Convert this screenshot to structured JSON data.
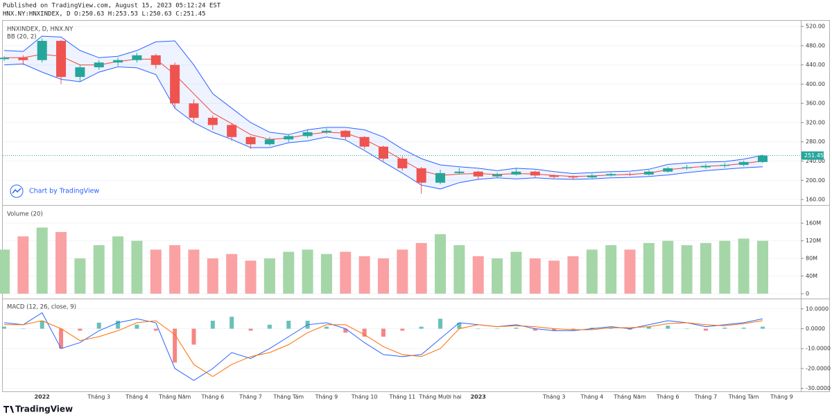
{
  "header": {
    "published": "Published on TradingView.com, August 15, 2023 05:12:24 EST",
    "quote": "HNX.NY:HNXINDEX, D O:250.63 H:253.53 L:250.63 C:251.45"
  },
  "footer": {
    "brand": "TradingView"
  },
  "chart_data": [
    {
      "type": "candlestick",
      "title": "HNXINDEX, D, HNX.NY",
      "watermark": "Chart by TradingView",
      "categories": [
        null,
        null,
        "2022",
        null,
        null,
        "Tháng 3",
        null,
        "Tháng 4",
        null,
        "Tháng Năm",
        null,
        "Tháng 6",
        null,
        "Tháng 7",
        null,
        "Tháng Tám",
        null,
        "Tháng 9",
        null,
        "Tháng 10",
        null,
        "Tháng 11",
        null,
        "Tháng Mười hai",
        null,
        "2023",
        null,
        null,
        null,
        "Tháng 3",
        null,
        "Tháng 4",
        null,
        "Tháng Năm",
        null,
        "Tháng 6",
        null,
        "Tháng 7",
        null,
        "Tháng Tám",
        null,
        "Tháng 9"
      ],
      "open": [
        452,
        455,
        450,
        490,
        415,
        435,
        445,
        450,
        460,
        440,
        360,
        330,
        315,
        290,
        275,
        285,
        292,
        300,
        303,
        290,
        270,
        245,
        225,
        195,
        215,
        218,
        208,
        212,
        218,
        210,
        207,
        206,
        210,
        213,
        212,
        218,
        225,
        227,
        230,
        232,
        238,
        null
      ],
      "high": [
        458,
        460,
        495,
        492,
        440,
        450,
        455,
        465,
        463,
        445,
        368,
        335,
        318,
        292,
        290,
        296,
        305,
        308,
        305,
        292,
        272,
        250,
        228,
        222,
        226,
        220,
        216,
        225,
        220,
        212,
        210,
        214,
        216,
        216,
        221,
        228,
        232,
        234,
        236,
        241,
        253.53,
        null
      ],
      "low": [
        448,
        440,
        445,
        400,
        405,
        430,
        438,
        445,
        432,
        350,
        320,
        305,
        282,
        265,
        272,
        280,
        288,
        296,
        285,
        265,
        240,
        220,
        172,
        192,
        212,
        202,
        205,
        210,
        206,
        203,
        202,
        204,
        208,
        209,
        210,
        216,
        222,
        224,
        226,
        229,
        236,
        null
      ],
      "close": [
        455,
        450,
        490,
        415,
        435,
        445,
        450,
        460,
        440,
        360,
        330,
        315,
        290,
        275,
        285,
        292,
        300,
        303,
        290,
        270,
        245,
        225,
        195,
        215,
        218,
        208,
        212,
        218,
        210,
        207,
        206,
        210,
        213,
        212,
        218,
        225,
        227,
        230,
        232,
        238,
        251.45,
        null
      ],
      "up_color": "#26a69a",
      "down_color": "#ef5350",
      "bands": {
        "name": "BB (20, 2)",
        "upper": [
          470,
          468,
          500,
          498,
          470,
          455,
          458,
          470,
          488,
          490,
          440,
          380,
          350,
          320,
          300,
          295,
          305,
          310,
          310,
          305,
          290,
          265,
          245,
          232,
          228,
          225,
          220,
          225,
          223,
          218,
          214,
          216,
          218,
          219,
          223,
          233,
          236,
          238,
          239,
          244,
          252,
          null
        ],
        "basis": [
          455,
          455,
          462,
          458,
          440,
          440,
          447,
          452,
          452,
          420,
          380,
          340,
          318,
          295,
          285,
          288,
          295,
          300,
          298,
          285,
          265,
          242,
          220,
          210,
          213,
          214,
          212,
          214,
          213,
          210,
          208,
          209,
          211,
          212,
          215,
          222,
          226,
          229,
          231,
          235,
          240,
          null
        ],
        "lower": [
          440,
          442,
          425,
          410,
          405,
          425,
          436,
          434,
          420,
          350,
          320,
          300,
          285,
          268,
          268,
          278,
          282,
          290,
          284,
          262,
          238,
          215,
          190,
          182,
          195,
          202,
          205,
          203,
          205,
          203,
          202,
          203,
          205,
          206,
          208,
          211,
          216,
          220,
          223,
          226,
          228,
          null
        ],
        "band_color": "#2962ff",
        "basis_color": "#f44336",
        "fill": "#2962ff"
      },
      "last_color": "#26a69a",
      "ylim": [
        148.5,
        531.8
      ],
      "yticks": [
        {
          "value": 160,
          "label": "160.00"
        },
        {
          "value": 200,
          "label": "200.00"
        },
        {
          "value": 240,
          "label": "240.00"
        },
        {
          "value": 280,
          "label": "280.00"
        },
        {
          "value": 320,
          "label": "320.00"
        },
        {
          "value": 360,
          "label": "360.00"
        },
        {
          "value": 400,
          "label": "400.00"
        },
        {
          "value": 440,
          "label": "440.00"
        },
        {
          "value": 480,
          "label": "480.00"
        },
        {
          "value": 520,
          "label": "520.00"
        }
      ],
      "grid": true
    },
    {
      "type": "volume",
      "title": "Volume (20)",
      "values": [
        100,
        130,
        150,
        140,
        80,
        110,
        130,
        120,
        100,
        110,
        100,
        80,
        90,
        75,
        80,
        95,
        100,
        90,
        95,
        85,
        80,
        100,
        115,
        135,
        110,
        85,
        80,
        95,
        80,
        75,
        85,
        100,
        110,
        100,
        115,
        120,
        110,
        115,
        120,
        125,
        120,
        null
      ],
      "up_color": "#a5d6a7",
      "down_color": "#faa1a4",
      "ylim": [
        -11.1,
        198
      ],
      "yticks": [
        0,
        {
          "value": 40,
          "label": "40M"
        },
        {
          "value": 80,
          "label": "80M"
        },
        {
          "value": 120,
          "label": "120M"
        },
        {
          "value": 160,
          "label": "160M"
        }
      ],
      "grid": true
    },
    {
      "type": "macd",
      "title": "MACD (12, 26, close, 9)",
      "macd": [
        3,
        2,
        8,
        -10,
        -7,
        -1,
        3,
        5,
        3,
        -20,
        -26,
        -20,
        -12,
        -15,
        -10,
        -4,
        2,
        3,
        0,
        -7,
        -13,
        -14,
        -13,
        -5,
        3,
        2,
        1,
        2,
        0,
        -1,
        -1,
        0,
        1,
        0,
        2,
        4,
        3,
        1,
        2,
        3,
        5,
        null
      ],
      "signal": [
        2,
        2,
        4,
        0,
        -6,
        -4,
        -1,
        3,
        4,
        -3,
        -18,
        -24,
        -18,
        -14,
        -12,
        -8,
        -2,
        2,
        2,
        -3,
        -9,
        -13,
        -14,
        -10,
        0,
        2,
        1,
        1.5,
        1,
        0,
        -0.5,
        -0.5,
        0.5,
        0.5,
        1,
        2.5,
        3,
        2,
        1.5,
        2.5,
        4,
        null
      ],
      "histogram": [
        1,
        0,
        4,
        -10,
        -1,
        3,
        4,
        2,
        -1,
        -17,
        -8,
        4,
        6,
        -1,
        2,
        4,
        4,
        1,
        -2,
        -4,
        -4,
        -1,
        1,
        5,
        3,
        0,
        0,
        0.5,
        -1,
        -1,
        -0.5,
        0.5,
        0.5,
        -0.5,
        1,
        1.5,
        0,
        -1,
        0.5,
        0.5,
        1,
        null
      ],
      "macd_color": "#2962ff",
      "signal_color": "#ff6d00",
      "hist_up_color": "#26a69a",
      "hist_down_color": "#ef5350",
      "ylim": [
        -31.5,
        14.8
      ],
      "yticks": [
        {
          "value": 10,
          "label": "10.0000"
        },
        {
          "value": 0,
          "label": "0.0000"
        },
        {
          "value": -10,
          "label": "-10.0000"
        },
        {
          "value": -20,
          "label": "-20.0000"
        },
        {
          "value": -30,
          "label": "-30.0000"
        }
      ],
      "grid": true
    }
  ]
}
